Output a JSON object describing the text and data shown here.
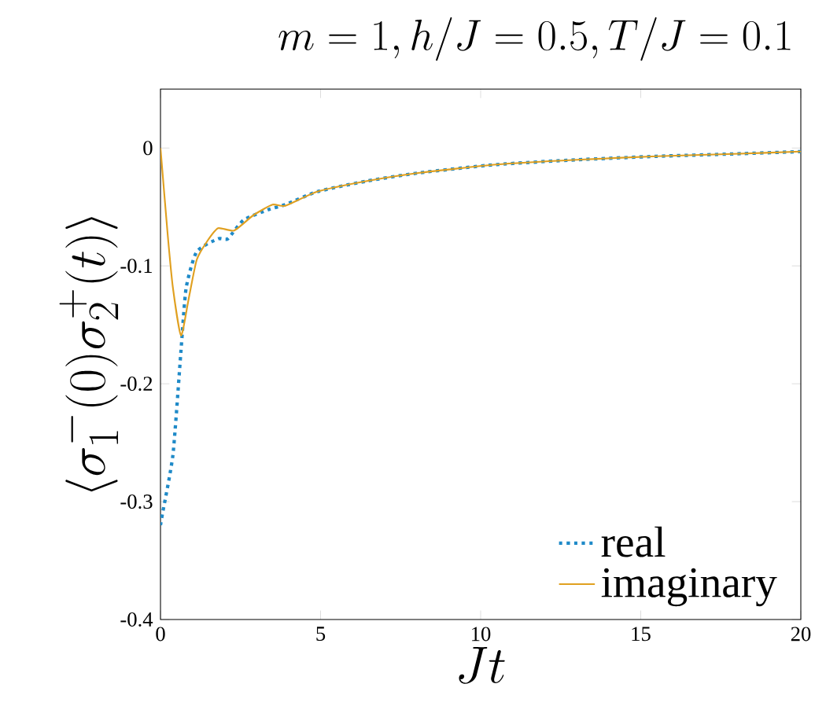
{
  "chart_data": {
    "type": "line",
    "title": "m = 1, h/J = 0.5, T/J = 0.1",
    "xlabel": "Jt",
    "ylabel": "\\langle \\sigma_1^-(0)\\sigma_2^+(t) \\rangle",
    "xlim": [
      0,
      20
    ],
    "ylim": [
      -0.4,
      0.05
    ],
    "xticks": [
      0,
      5,
      10,
      15,
      20
    ],
    "yticks": [
      -0.4,
      -0.3,
      -0.2,
      -0.1,
      0
    ],
    "legend": "bottom right",
    "grid": false,
    "series": [
      {
        "name": "real",
        "color": "#1f8ac8",
        "line_style": "dotted",
        "x": [
          0,
          0.05,
          0.39,
          0.64,
          0.8,
          1.13,
          1.8,
          2.1,
          2.6,
          3.4,
          3.9,
          4.9,
          6.45,
          8.1,
          10.5,
          13,
          15.5,
          17.9,
          20
        ],
        "values": [
          -0.32,
          -0.312,
          -0.26,
          -0.172,
          -0.119,
          -0.088,
          -0.077,
          -0.077,
          -0.061,
          -0.052,
          -0.048,
          -0.037,
          -0.028,
          -0.021,
          -0.014,
          -0.01,
          -0.007,
          -0.005,
          -0.003
        ]
      },
      {
        "name": "imaginary",
        "color": "#e0a020",
        "line_style": "solid",
        "x": [
          0,
          0.23,
          0.39,
          0.64,
          0.88,
          1.13,
          1.46,
          1.8,
          2.3,
          2.9,
          3.5,
          3.9,
          4.9,
          6.45,
          8.1,
          10.5,
          13,
          15.5,
          17.9,
          20
        ],
        "values": [
          0,
          -0.075,
          -0.119,
          -0.159,
          -0.128,
          -0.095,
          -0.079,
          -0.068,
          -0.07,
          -0.057,
          -0.048,
          -0.049,
          -0.037,
          -0.028,
          -0.021,
          -0.014,
          -0.01,
          -0.007,
          -0.005,
          -0.003
        ]
      }
    ]
  }
}
